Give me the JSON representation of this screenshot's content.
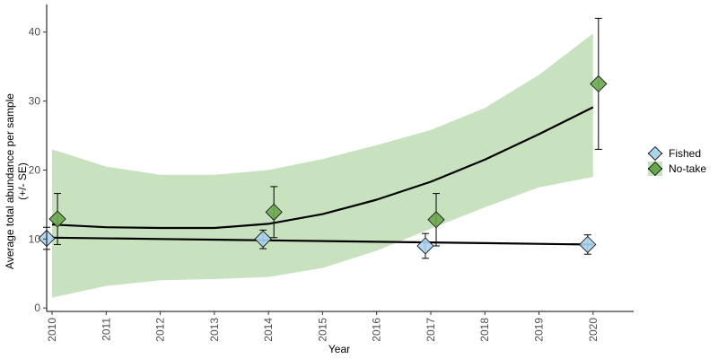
{
  "chart_data": {
    "type": "scatter",
    "xlabel": "Year",
    "ylabel_line1": "Average total abundance per sample",
    "ylabel_line2": "(+/- SE)",
    "xlim": [
      2009.9,
      2020.75
    ],
    "ylim": [
      -0.5,
      44
    ],
    "x_ticks": [
      2010,
      2011,
      2012,
      2013,
      2014,
      2015,
      2016,
      2017,
      2018,
      2019,
      2020
    ],
    "x_tick_labels": [
      "2010",
      "2011",
      "2012",
      "2013",
      "2014",
      "2015",
      "2016",
      "2017",
      "2018",
      "2019",
      "2020"
    ],
    "y_ticks": [
      0,
      10,
      20,
      30,
      40
    ],
    "y_tick_labels": [
      "0",
      "10",
      "20",
      "30",
      "40"
    ],
    "grid": false,
    "legend_position": "right",
    "series": [
      {
        "name": "Fished",
        "color": "#a9d4ee",
        "marker": "diamond",
        "points": [
          {
            "x": 2009.9,
            "y": 10.1,
            "se_low": 8.5,
            "se_high": 11.7
          },
          {
            "x": 2013.9,
            "y": 10.0,
            "se_low": 8.6,
            "se_high": 11.3
          },
          {
            "x": 2016.9,
            "y": 9.0,
            "se_low": 7.2,
            "se_high": 10.8
          },
          {
            "x": 2019.9,
            "y": 9.2,
            "se_low": 7.8,
            "se_high": 10.6
          }
        ],
        "fit": {
          "x": [
            2010,
            2012,
            2014,
            2016,
            2018,
            2020
          ],
          "y": [
            10.2,
            10.0,
            9.8,
            9.6,
            9.4,
            9.2
          ]
        }
      },
      {
        "name": "No-take",
        "color": "#6aa84f",
        "marker": "diamond",
        "points": [
          {
            "x": 2010.1,
            "y": 12.9,
            "se_low": 9.2,
            "se_high": 16.6
          },
          {
            "x": 2014.1,
            "y": 13.9,
            "se_low": 10.2,
            "se_high": 17.6
          },
          {
            "x": 2017.1,
            "y": 12.8,
            "se_low": 9.0,
            "se_high": 16.6
          },
          {
            "x": 2020.1,
            "y": 32.5,
            "se_low": 23.0,
            "se_high": 42.0
          }
        ],
        "fit": {
          "x": [
            2010,
            2011,
            2012,
            2013,
            2014,
            2015,
            2016,
            2017,
            2018,
            2019,
            2020
          ],
          "y": [
            12.1,
            11.7,
            11.6,
            11.6,
            12.2,
            13.6,
            15.7,
            18.3,
            21.5,
            25.2,
            29.1
          ]
        },
        "ci_band": {
          "color": "#c8e2bf",
          "x": [
            2010,
            2011,
            2012,
            2013,
            2014,
            2015,
            2016,
            2017,
            2018,
            2019,
            2020
          ],
          "lower": [
            1.5,
            3.2,
            4.0,
            4.2,
            4.5,
            5.8,
            8.3,
            11.5,
            14.6,
            17.5,
            19.0
          ],
          "upper": [
            23.0,
            20.5,
            19.3,
            19.3,
            20.0,
            21.6,
            23.6,
            25.8,
            29.0,
            33.8,
            39.8
          ]
        }
      }
    ]
  }
}
